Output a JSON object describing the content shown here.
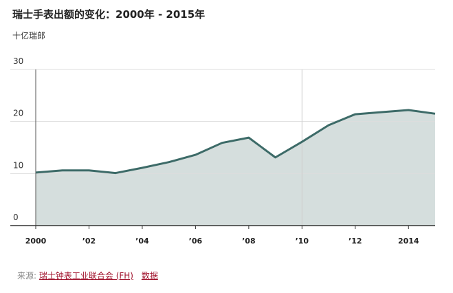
{
  "chart_data": {
    "type": "area",
    "title": "瑞士手表出额的变化：2000年 - 2015年",
    "subtitle": "十亿瑞郎",
    "x": [
      2000,
      2001,
      2002,
      2003,
      2004,
      2005,
      2006,
      2007,
      2008,
      2009,
      2010,
      2011,
      2012,
      2013,
      2014,
      2015
    ],
    "values": [
      10.2,
      10.6,
      10.6,
      10.1,
      11.1,
      12.2,
      13.6,
      15.9,
      16.9,
      13.1,
      16.1,
      19.3,
      21.4,
      21.8,
      22.2,
      21.5
    ],
    "color": "#3d6b68",
    "fill": "#d5dedd",
    "xlim": [
      2000,
      2015
    ],
    "xticks": [
      2000,
      {
        "value": 2002,
        "label": "’02"
      },
      {
        "value": 2004,
        "label": "’04"
      },
      {
        "value": 2006,
        "label": "’06"
      },
      {
        "value": 2008,
        "label": "’08"
      },
      {
        "value": 2010,
        "label": "’10"
      },
      {
        "value": 2012,
        "label": "’12"
      },
      2014
    ],
    "vlines": [
      2010
    ],
    "ylim": [
      0,
      30
    ],
    "yticks": [
      0,
      10,
      20,
      30
    ],
    "grid": true
  },
  "footer": {
    "source_label": "来源:",
    "links": [
      "瑞士钟表工业联合会 (FH)",
      "数据"
    ]
  }
}
